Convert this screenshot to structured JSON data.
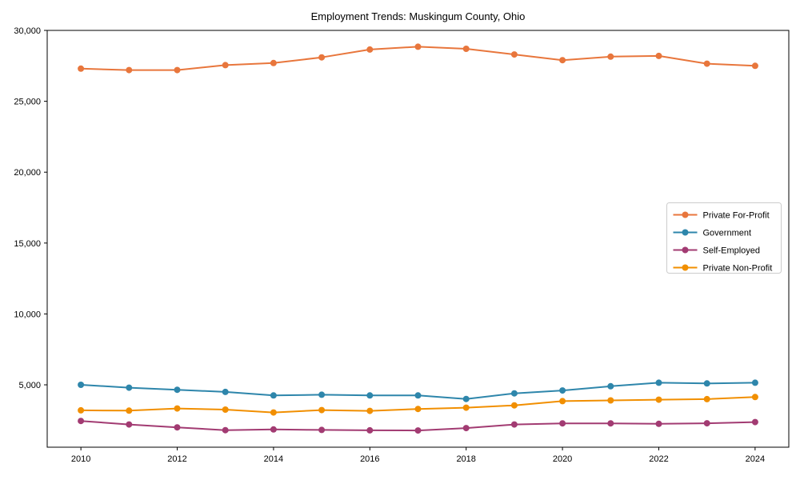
{
  "chart_data": {
    "type": "line",
    "title": "Employment Trends: Muskingum County, Ohio",
    "xlabel": "",
    "ylabel": "",
    "grid": false,
    "legend_position": "right-middle",
    "xlim": [
      2009.3,
      2024.7
    ],
    "ylim": [
      600,
      30000
    ],
    "x": [
      2010,
      2011,
      2012,
      2013,
      2014,
      2015,
      2016,
      2017,
      2018,
      2019,
      2020,
      2021,
      2022,
      2023,
      2024
    ],
    "x_ticks": [
      2010,
      2012,
      2014,
      2016,
      2018,
      2020,
      2022,
      2024
    ],
    "x_tick_labels": [
      "2010",
      "2012",
      "2014",
      "2016",
      "2018",
      "2020",
      "2022",
      "2024"
    ],
    "y_ticks": [
      5000,
      10000,
      15000,
      20000,
      25000,
      30000
    ],
    "y_tick_labels": [
      "5,000",
      "10,000",
      "15,000",
      "20,000",
      "25,000",
      "30,000"
    ],
    "series": [
      {
        "name": "Private For-Profit",
        "color": "#e8763c",
        "values": [
          27300,
          27200,
          27200,
          27550,
          27700,
          28100,
          28650,
          28850,
          28700,
          28300,
          27900,
          28150,
          28200,
          27650,
          27500
        ]
      },
      {
        "name": "Government",
        "color": "#2e86ab",
        "values": [
          5000,
          4800,
          4650,
          4500,
          4250,
          4300,
          4250,
          4250,
          4000,
          4400,
          4600,
          4900,
          5150,
          5100,
          5150
        ]
      },
      {
        "name": "Self-Employed",
        "color": "#a23b72",
        "values": [
          2450,
          2200,
          2000,
          1800,
          1850,
          1820,
          1790,
          1780,
          1950,
          2200,
          2280,
          2280,
          2250,
          2290,
          2370
        ]
      },
      {
        "name": "Private Non-Profit",
        "color": "#f18f01",
        "values": [
          3200,
          3180,
          3330,
          3250,
          3050,
          3220,
          3160,
          3300,
          3390,
          3550,
          3850,
          3900,
          3950,
          3990,
          4140
        ]
      }
    ],
    "marker": "circle",
    "marker_radius": 4,
    "line_width": 2,
    "spine_color": "#000000",
    "legend_border_color": "#cccccc"
  }
}
